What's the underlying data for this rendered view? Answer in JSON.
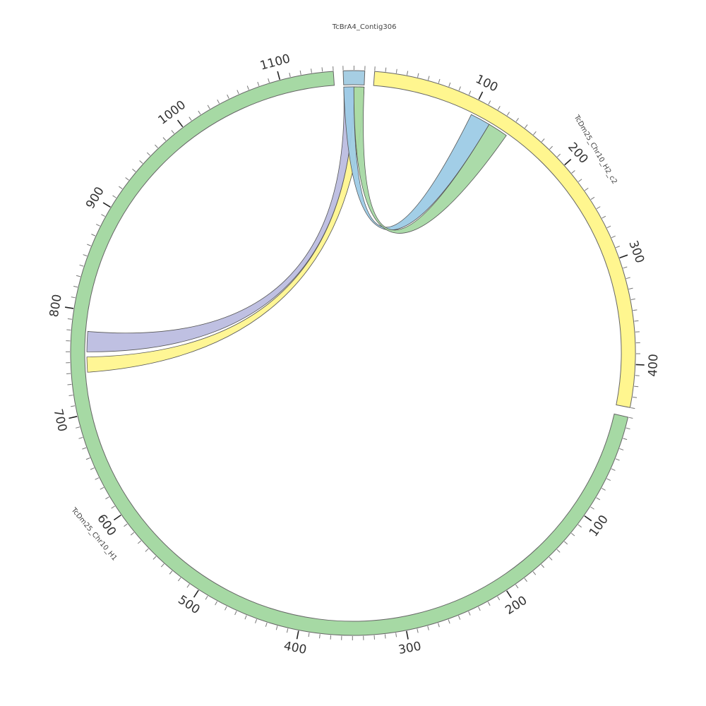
{
  "chart_data": {
    "type": "chord",
    "segments": [
      {
        "name": "TcBrA4_Contig306",
        "length": 20,
        "color": "#a6cee3",
        "tick_step": 10,
        "label_step": null,
        "show_labels": false
      },
      {
        "name": "TcDm25_Chr10_H2_c2",
        "length": 440,
        "color": "#fff68f",
        "tick_step": 10,
        "label_step": 100,
        "show_labels": true
      },
      {
        "name": "TcDm25_Chr10_H1",
        "length": 1150,
        "color": "#a6d9a4",
        "tick_step": 10,
        "label_step": 100,
        "show_labels": true
      }
    ],
    "links": [
      {
        "from": {
          "segment": "TcBrA4_Contig306",
          "start": 0,
          "end": 10
        },
        "to": {
          "segment": "TcDm25_Chr10_H1",
          "start": 760,
          "end": 780
        },
        "color": "#bcbde0"
      },
      {
        "from": {
          "segment": "TcBrA4_Contig306",
          "start": 10,
          "end": 20
        },
        "to": {
          "segment": "TcDm25_Chr10_H1",
          "start": 740,
          "end": 755
        },
        "color": "#fff68f"
      },
      {
        "from": {
          "segment": "TcBrA4_Contig306",
          "start": 0,
          "end": 10
        },
        "to": {
          "segment": "TcDm25_Chr10_H2_c2",
          "start": 100,
          "end": 120
        },
        "color": "#9dcbe6"
      },
      {
        "from": {
          "segment": "TcBrA4_Contig306",
          "start": 10,
          "end": 20
        },
        "to": {
          "segment": "TcDm25_Chr10_H2_c2",
          "start": 120,
          "end": 140
        },
        "color": "#a6d9a4"
      }
    ]
  }
}
